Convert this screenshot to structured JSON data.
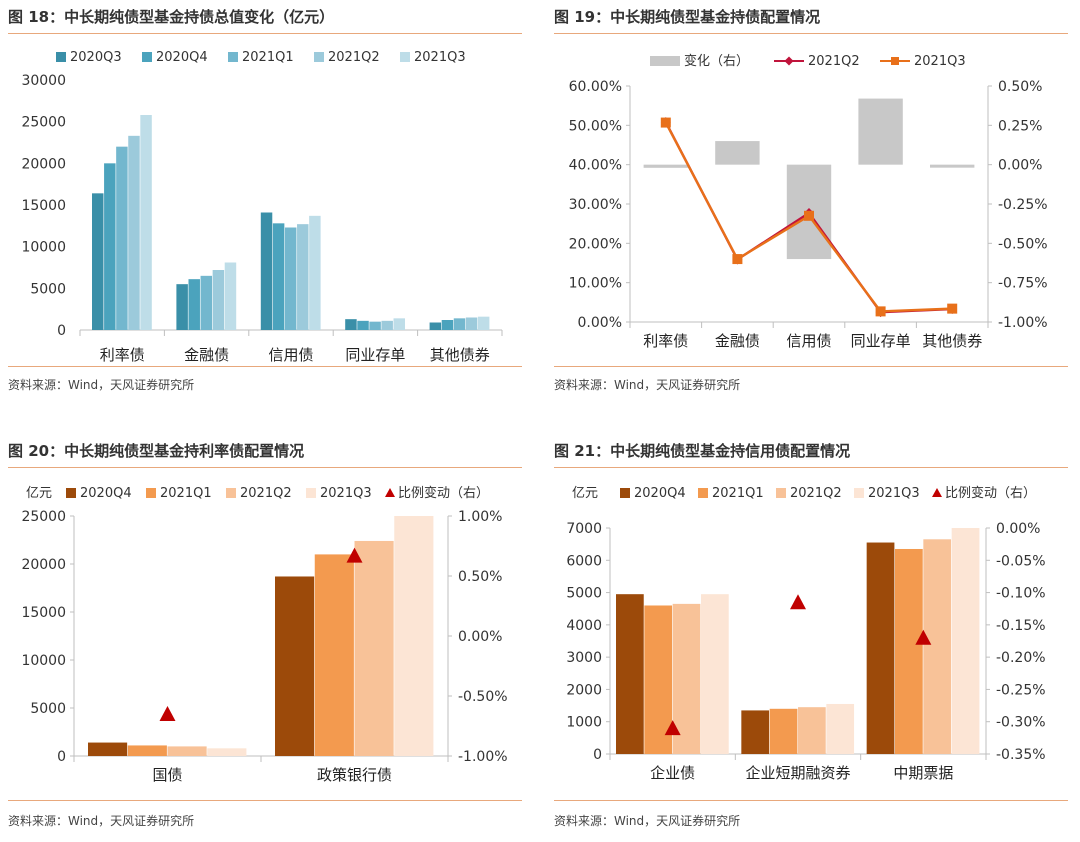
{
  "panels": [
    {
      "title": "图 18：中长期纯债型基金持债总值变化（亿元）",
      "source": "资料来源：Wind，天风证券研究所"
    },
    {
      "title": "图 19：中长期纯债型基金持债配置情况",
      "source": "资料来源：Wind，天风证券研究所"
    },
    {
      "title": "图 20：中长期纯债型基金持利率债配置情况",
      "source": "资料来源：Wind，天风证券研究所",
      "unit": "亿元"
    },
    {
      "title": "图 21：中长期纯债型基金持信用债配置情况",
      "source": "资料来源：Wind，天风证券研究所",
      "unit": "亿元"
    }
  ],
  "chart_data": [
    {
      "type": "bar",
      "categories": [
        "利率债",
        "金融债",
        "信用债",
        "同业存单",
        "其他债券"
      ],
      "series": [
        {
          "name": "2020Q3",
          "color": "#3A8FA8",
          "values": [
            16400,
            5500,
            14100,
            1300,
            900
          ]
        },
        {
          "name": "2020Q4",
          "color": "#4BA3BD",
          "values": [
            20000,
            6100,
            12800,
            1100,
            1200
          ]
        },
        {
          "name": "2021Q1",
          "color": "#73B7CE",
          "values": [
            22000,
            6500,
            12300,
            1000,
            1400
          ]
        },
        {
          "name": "2021Q2",
          "color": "#9CCADB",
          "values": [
            23300,
            7200,
            12700,
            1100,
            1500
          ]
        },
        {
          "name": "2021Q3",
          "color": "#BEDDE8",
          "values": [
            25800,
            8100,
            13700,
            1400,
            1600
          ]
        }
      ],
      "ylim": [
        0,
        30000
      ],
      "yticks": [
        0,
        5000,
        10000,
        15000,
        20000,
        25000,
        30000
      ],
      "ytick_labels": [
        "0",
        "5000",
        "10000",
        "15000",
        "20000",
        "25000",
        "30000"
      ]
    },
    {
      "type": "line",
      "categories": [
        "利率债",
        "金融债",
        "信用债",
        "同业存单",
        "其他债券"
      ],
      "bars": {
        "name": "变化（右）",
        "color": "#C8C8C8",
        "values": [
          -0.02,
          0.15,
          -0.6,
          0.42,
          -0.01
        ]
      },
      "series": [
        {
          "name": "2021Q2",
          "color": "#C0143C",
          "marker": "diamond",
          "values": [
            50.8,
            15.9,
            27.7,
            2.5,
            3.3
          ]
        },
        {
          "name": "2021Q3",
          "color": "#E8701A",
          "marker": "square",
          "values": [
            50.7,
            16.0,
            27.0,
            2.7,
            3.4
          ]
        }
      ],
      "ylim": [
        0,
        60
      ],
      "yticks": [
        0,
        10,
        20,
        30,
        40,
        50,
        60
      ],
      "ytick_labels": [
        "0.00%",
        "10.00%",
        "20.00%",
        "30.00%",
        "40.00%",
        "50.00%",
        "60.00%"
      ],
      "y2lim": [
        -1.0,
        0.5
      ],
      "y2ticks": [
        -1.0,
        -0.75,
        -0.5,
        -0.25,
        0,
        0.25,
        0.5
      ],
      "y2tick_labels": [
        "-1.00%",
        "-0.75%",
        "-0.50%",
        "-0.25%",
        "0.00%",
        "0.25%",
        "0.50%"
      ]
    },
    {
      "type": "bar",
      "categories": [
        "国债",
        "政策银行债"
      ],
      "series": [
        {
          "name": "2020Q4",
          "color": "#9C4A0A",
          "values": [
            1400,
            18700
          ]
        },
        {
          "name": "2021Q1",
          "color": "#F39A4F",
          "values": [
            1100,
            21000
          ]
        },
        {
          "name": "2021Q2",
          "color": "#F8C298",
          "values": [
            1000,
            22400
          ]
        },
        {
          "name": "2021Q3",
          "color": "#FCE5D5",
          "values": [
            800,
            25000
          ]
        }
      ],
      "markers": {
        "name": "比例变动（右）",
        "color": "#C00000",
        "values": [
          -0.65,
          0.67
        ]
      },
      "ylim": [
        0,
        25000
      ],
      "yticks": [
        0,
        5000,
        10000,
        15000,
        20000,
        25000
      ],
      "ytick_labels": [
        "0",
        "5000",
        "10000",
        "15000",
        "20000",
        "25000"
      ],
      "y2lim": [
        -1.0,
        1.0
      ],
      "y2ticks": [
        -1.0,
        -0.5,
        0,
        0.5,
        1.0
      ],
      "y2tick_labels": [
        "-1.00%",
        "-0.50%",
        "0.00%",
        "0.50%",
        "1.00%"
      ]
    },
    {
      "type": "bar",
      "categories": [
        "企业债",
        "企业短期融资券",
        "中期票据"
      ],
      "series": [
        {
          "name": "2020Q4",
          "color": "#9C4A0A",
          "values": [
            4950,
            1350,
            6550
          ]
        },
        {
          "name": "2021Q1",
          "color": "#F39A4F",
          "values": [
            4600,
            1400,
            6350
          ]
        },
        {
          "name": "2021Q2",
          "color": "#F8C298",
          "values": [
            4650,
            1450,
            6650
          ]
        },
        {
          "name": "2021Q3",
          "color": "#FCE5D5",
          "values": [
            4950,
            1550,
            7000
          ]
        }
      ],
      "markers": {
        "name": "比例变动（右）",
        "color": "#C00000",
        "values": [
          -0.31,
          -0.115,
          -0.17
        ]
      },
      "ylim": [
        0,
        7000
      ],
      "yticks": [
        0,
        1000,
        2000,
        3000,
        4000,
        5000,
        6000,
        7000
      ],
      "ytick_labels": [
        "0",
        "1000",
        "2000",
        "3000",
        "4000",
        "5000",
        "6000",
        "7000"
      ],
      "y2lim": [
        -0.35,
        0
      ],
      "y2ticks": [
        -0.35,
        -0.3,
        -0.25,
        -0.2,
        -0.15,
        -0.1,
        -0.05,
        0
      ],
      "y2tick_labels": [
        "-0.35%",
        "-0.30%",
        "-0.25%",
        "-0.20%",
        "-0.15%",
        "-0.10%",
        "-0.05%",
        "0.00%"
      ]
    }
  ]
}
